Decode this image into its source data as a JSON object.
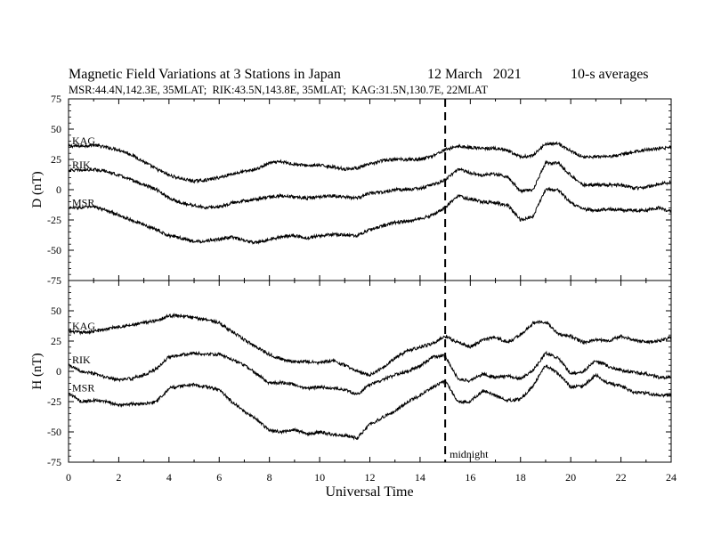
{
  "header": {
    "title": "Magnetic Field Variations at 3 Stations in Japan",
    "date": "12 March   2021",
    "averaging": "10-s averages",
    "stations_line": "MSR:44.4N,142.3E, 35MLAT;  RIK:43.5N,143.8E, 35MLAT;  KAG:31.5N,130.7E, 22MLAT"
  },
  "annotations": {
    "midnight_label": "midnight",
    "midnight_ut": 15
  },
  "chart_data": [
    {
      "type": "line",
      "panel": "top",
      "title": "",
      "xlabel": "",
      "ylabel": "D (nT)",
      "xlim": [
        0,
        24
      ],
      "ylim": [
        -75,
        75
      ],
      "yticks": [
        "75",
        "50",
        "25",
        "0",
        "-25",
        "-50",
        "-75"
      ],
      "grid": false,
      "legend": "inline labels at left",
      "x": [
        0,
        0.5,
        1,
        1.5,
        2,
        2.5,
        3,
        3.5,
        4,
        4.5,
        5,
        5.5,
        6,
        6.5,
        7,
        7.5,
        8,
        8.5,
        9,
        9.5,
        10,
        10.5,
        11,
        11.5,
        12,
        12.5,
        13,
        13.5,
        14,
        14.5,
        15,
        15.5,
        16,
        16.5,
        17,
        17.5,
        18,
        18.5,
        19,
        19.5,
        20,
        20.5,
        21,
        21.5,
        22,
        22.5,
        23,
        23.5,
        24
      ],
      "series": [
        {
          "name": "KAG",
          "values": [
            36,
            36,
            37,
            35,
            33,
            29,
            23,
            17,
            12,
            9,
            7,
            8,
            10,
            13,
            15,
            17,
            22,
            23,
            21,
            20,
            20,
            19,
            17,
            18,
            21,
            24,
            25,
            25,
            25,
            28,
            33,
            36,
            35,
            34,
            34,
            32,
            27,
            28,
            38,
            38,
            32,
            27,
            27,
            27,
            29,
            31,
            33,
            34,
            35
          ]
        },
        {
          "name": "RIK",
          "values": [
            16,
            16,
            17,
            15,
            12,
            8,
            4,
            0,
            -7,
            -11,
            -13,
            -15,
            -14,
            -11,
            -9,
            -8,
            -6,
            -5,
            -6,
            -7,
            -6,
            -5,
            -6,
            -7,
            -3,
            -2,
            0,
            0,
            1,
            4,
            8,
            17,
            14,
            12,
            13,
            10,
            -1,
            0,
            22,
            22,
            12,
            4,
            4,
            4,
            4,
            1,
            2,
            5,
            6
          ]
        },
        {
          "name": "MSR",
          "values": [
            -15,
            -15,
            -14,
            -17,
            -21,
            -25,
            -29,
            -33,
            -38,
            -40,
            -43,
            -42,
            -41,
            -39,
            -42,
            -44,
            -41,
            -39,
            -38,
            -40,
            -38,
            -37,
            -37,
            -38,
            -33,
            -30,
            -27,
            -26,
            -24,
            -21,
            -15,
            -5,
            -8,
            -10,
            -11,
            -13,
            -25,
            -22,
            0,
            0,
            -11,
            -16,
            -17,
            -16,
            -17,
            -17,
            -17,
            -15,
            -18
          ]
        }
      ]
    },
    {
      "type": "line",
      "panel": "bottom",
      "title": "",
      "xlabel": "Universal Time",
      "ylabel": "H (nT)",
      "xlim": [
        0,
        24
      ],
      "ylim": [
        -75,
        75
      ],
      "yticks": [
        "50",
        "25",
        "0",
        "-25",
        "-50",
        "-75"
      ],
      "xticks": [
        "0",
        "2",
        "4",
        "6",
        "8",
        "10",
        "12",
        "14",
        "16",
        "18",
        "20",
        "22",
        "24"
      ],
      "grid": false,
      "legend": "inline labels at left",
      "x": [
        0,
        0.5,
        1,
        1.5,
        2,
        2.5,
        3,
        3.5,
        4,
        4.5,
        5,
        5.5,
        6,
        6.5,
        7,
        7.5,
        8,
        8.5,
        9,
        9.5,
        10,
        10.5,
        11,
        11.5,
        12,
        12.5,
        13,
        13.5,
        14,
        14.5,
        15,
        15.5,
        16,
        16.5,
        17,
        17.5,
        18,
        18.5,
        19,
        19.5,
        20,
        20.5,
        21,
        21.5,
        22,
        22.5,
        23,
        23.5,
        24
      ],
      "series": [
        {
          "name": "KAG",
          "values": [
            33,
            32,
            33,
            35,
            37,
            38,
            40,
            42,
            46,
            46,
            44,
            43,
            40,
            33,
            26,
            20,
            14,
            10,
            8,
            8,
            7,
            9,
            5,
            0,
            -3,
            3,
            11,
            17,
            20,
            23,
            29,
            24,
            20,
            26,
            28,
            24,
            30,
            40,
            41,
            31,
            29,
            24,
            26,
            25,
            29,
            26,
            24,
            25,
            28
          ]
        },
        {
          "name": "RIK",
          "values": [
            5,
            0,
            -2,
            -5,
            -7,
            -6,
            -3,
            2,
            12,
            14,
            15,
            14,
            14,
            10,
            5,
            -2,
            -10,
            -9,
            -11,
            -14,
            -13,
            -14,
            -15,
            -19,
            -11,
            -7,
            -3,
            0,
            4,
            12,
            13,
            -6,
            -8,
            -2,
            -5,
            -4,
            -6,
            1,
            15,
            11,
            -2,
            0,
            9,
            4,
            1,
            -1,
            -2,
            -5,
            -5
          ]
        },
        {
          "name": "MSR",
          "values": [
            -18,
            -25,
            -24,
            -25,
            -28,
            -27,
            -27,
            -25,
            -14,
            -12,
            -11,
            -13,
            -15,
            -25,
            -33,
            -40,
            -49,
            -50,
            -48,
            -52,
            -50,
            -52,
            -53,
            -55,
            -44,
            -38,
            -33,
            -25,
            -20,
            -13,
            -8,
            -25,
            -25,
            -16,
            -20,
            -24,
            -23,
            -12,
            5,
            -2,
            -13,
            -12,
            -3,
            -10,
            -12,
            -17,
            -18,
            -20,
            -19
          ]
        }
      ]
    }
  ]
}
